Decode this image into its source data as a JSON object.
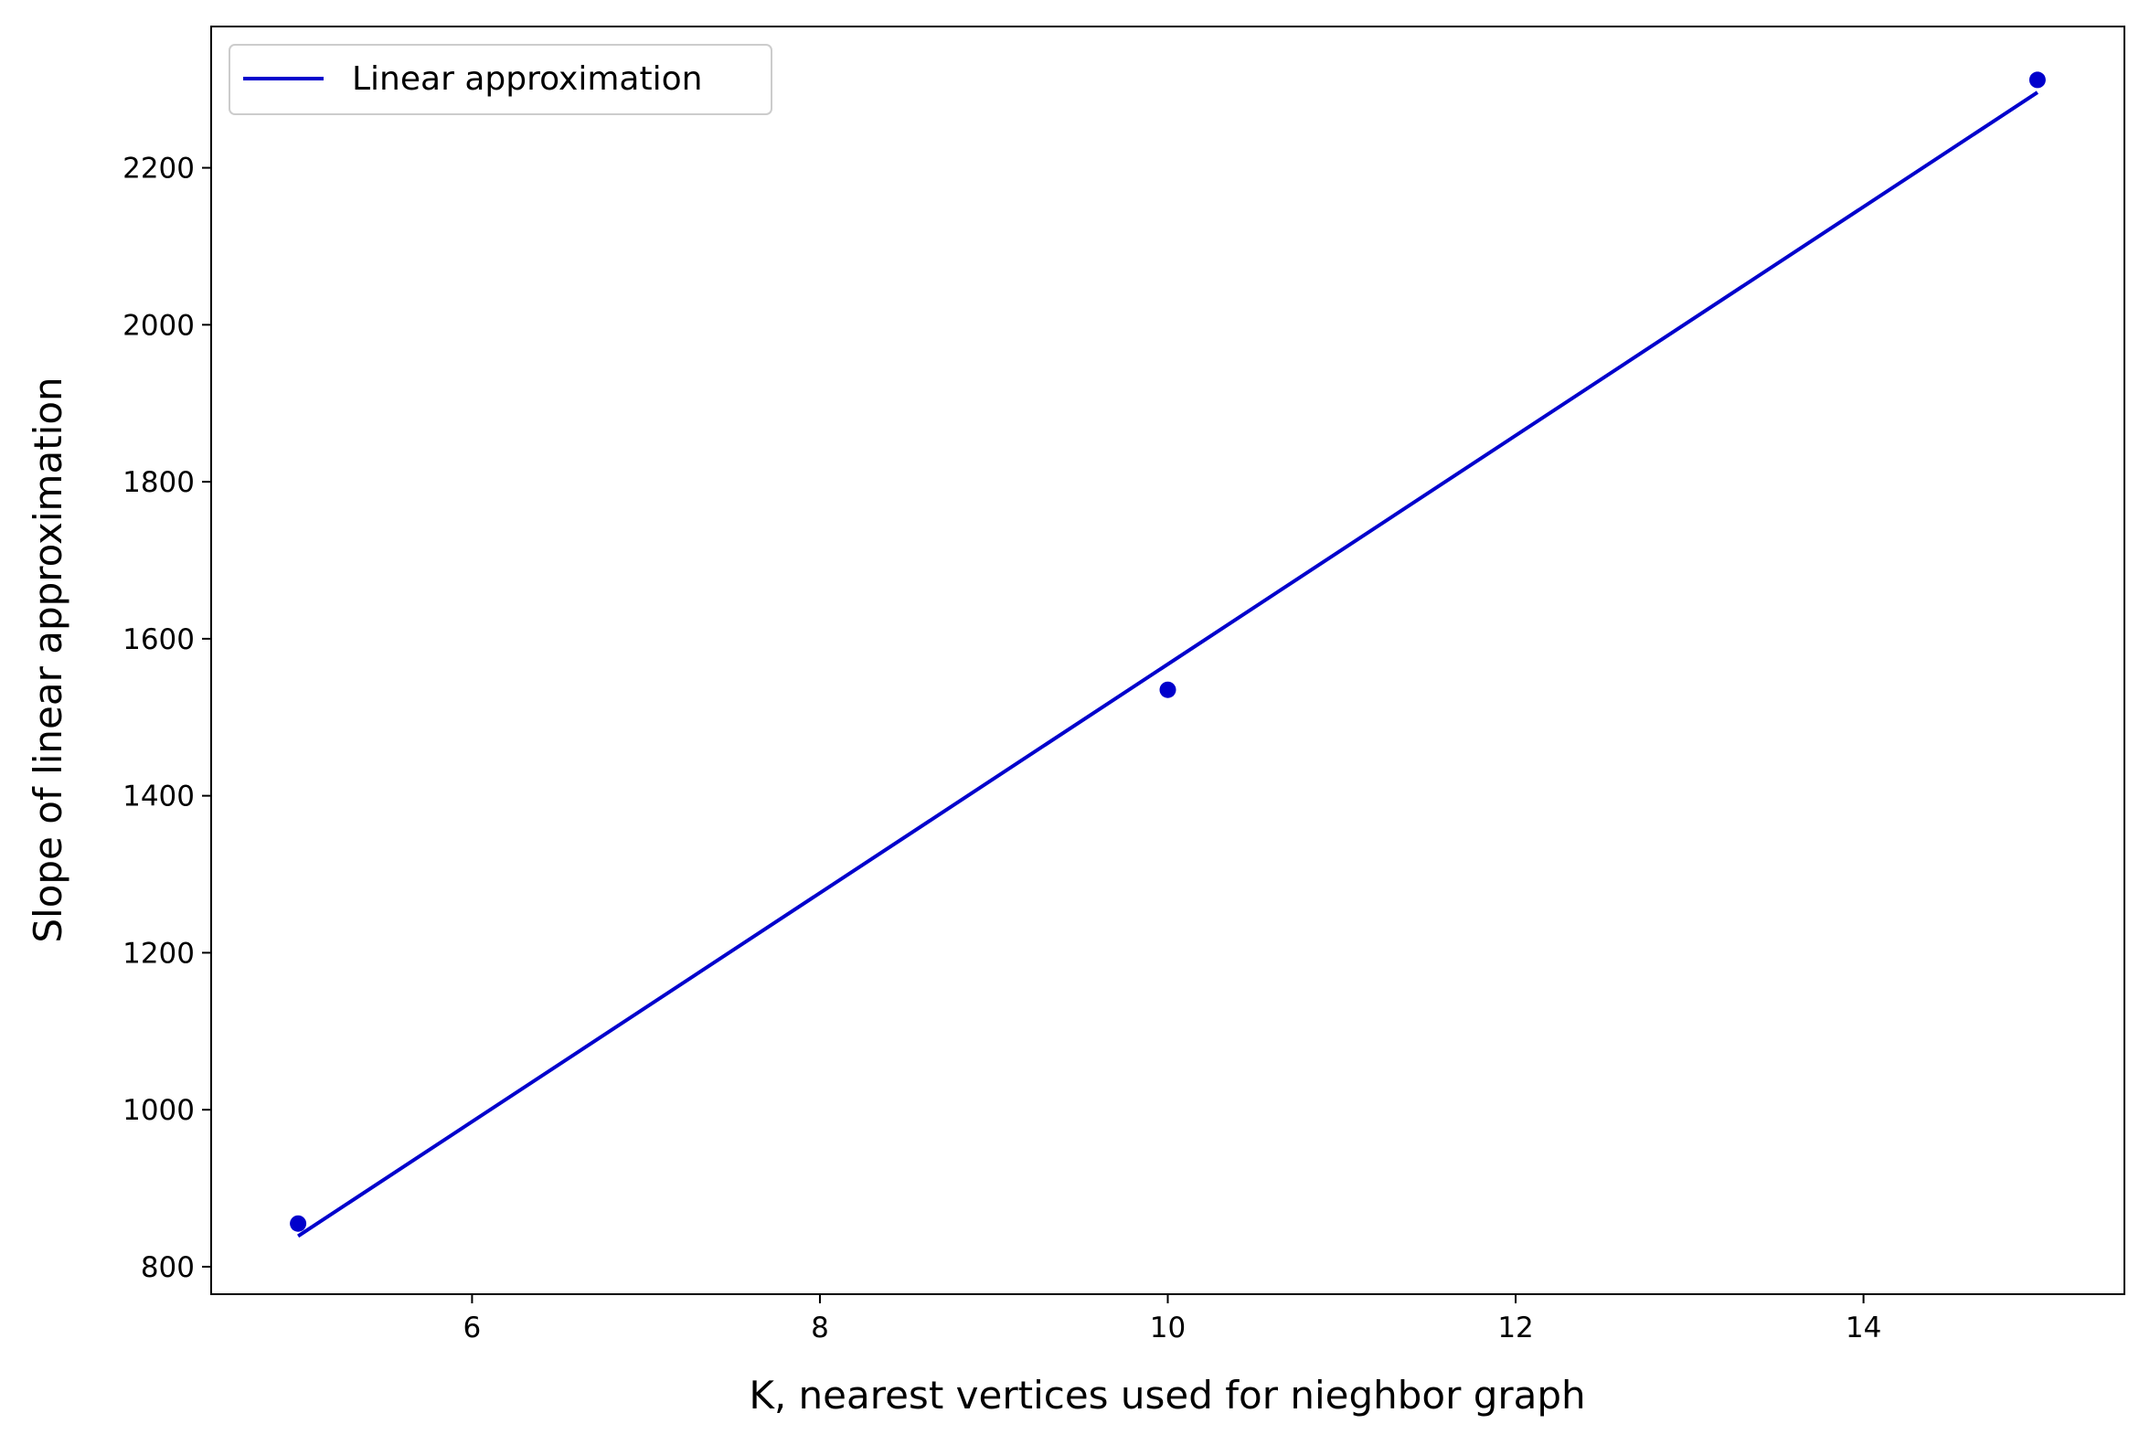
{
  "chart_data": {
    "type": "scatter",
    "title": "",
    "xlabel": "K, nearest vertices used for nieghbor graph",
    "ylabel": "Slope of linear approximation",
    "xlim": [
      4.5,
      15.5
    ],
    "ylim": [
      765,
      2380
    ],
    "xticks": [
      6,
      8,
      10,
      12,
      14
    ],
    "yticks": [
      800,
      1000,
      1200,
      1400,
      1600,
      1800,
      2000,
      2200
    ],
    "grid": false,
    "legend_position": "top-left",
    "color": "#0000cc",
    "points": {
      "x": [
        5,
        10,
        15
      ],
      "y": [
        855,
        1535,
        2312
      ]
    },
    "series": [
      {
        "name": "Linear approximation",
        "type": "line",
        "x": [
          5,
          15
        ],
        "y": [
          839,
          2296
        ]
      }
    ]
  }
}
